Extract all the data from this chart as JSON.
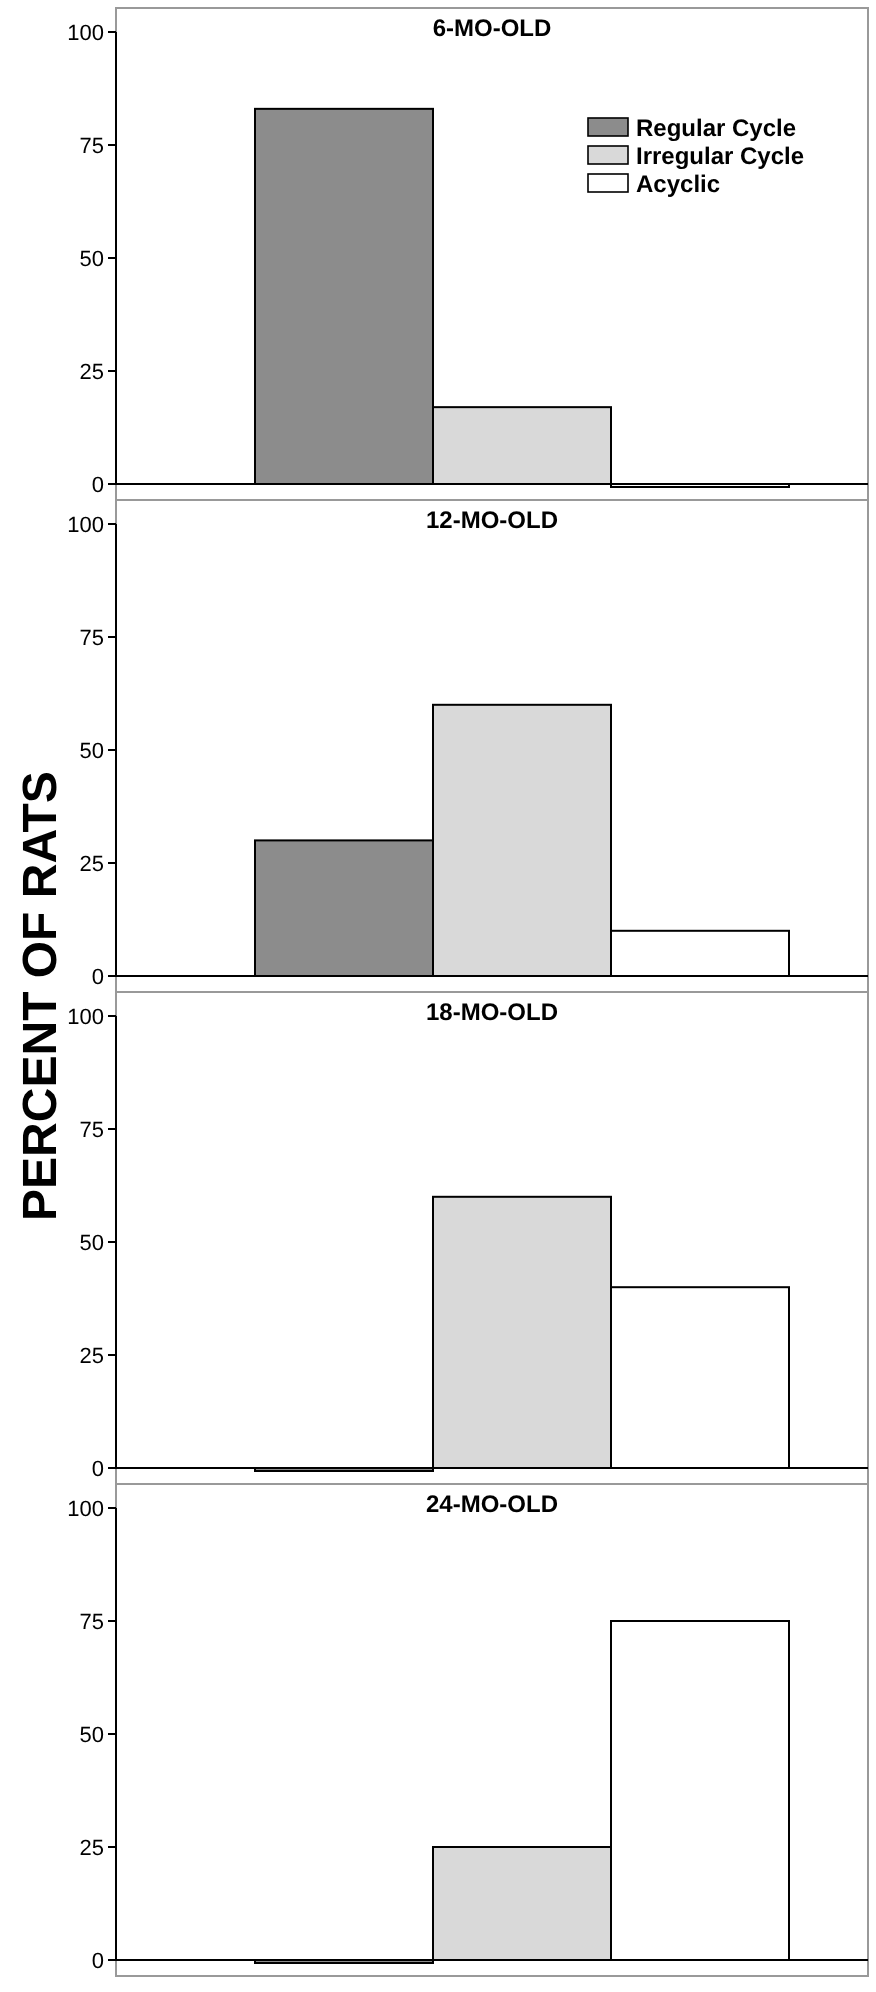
{
  "chart_data": [
    {
      "type": "bar",
      "title": "6-MO-OLD",
      "ylabel": "PERCENT OF RATS",
      "categories": [
        null
      ],
      "ylim": [
        0,
        100
      ],
      "yticks": [
        0,
        25,
        50,
        75,
        100
      ],
      "legend": "top right",
      "series": [
        {
          "name": "Regular Cycle",
          "color": "#8c8c8c",
          "values": [
            83
          ]
        },
        {
          "name": "Irregular Cycle",
          "color": "#d9d9d9",
          "values": [
            17
          ]
        },
        {
          "name": "Acyclic",
          "color": "#ffffff",
          "values": [
            0
          ]
        }
      ]
    },
    {
      "type": "bar",
      "title": "12-MO-OLD",
      "categories": [
        null
      ],
      "ylim": [
        0,
        100
      ],
      "yticks": [
        0,
        25,
        50,
        75,
        100
      ],
      "series": [
        {
          "color": "#8c8c8c",
          "values": [
            30
          ]
        },
        {
          "color": "#d9d9d9",
          "values": [
            60
          ]
        },
        {
          "color": "#ffffff",
          "values": [
            10
          ]
        }
      ]
    },
    {
      "type": "bar",
      "title": "18-MO-OLD",
      "categories": [
        null
      ],
      "ylim": [
        0,
        100
      ],
      "yticks": [
        0,
        25,
        50,
        75,
        100
      ],
      "series": [
        {
          "color": "#8c8c8c",
          "values": [
            0
          ]
        },
        {
          "color": "#d9d9d9",
          "values": [
            60
          ]
        },
        {
          "color": "#ffffff",
          "values": [
            40
          ]
        }
      ]
    },
    {
      "type": "bar",
      "title": "24-MO-OLD",
      "categories": [
        null
      ],
      "ylim": [
        0,
        100
      ],
      "yticks": [
        0,
        25,
        50,
        75,
        100
      ],
      "series": [
        {
          "color": "#8c8c8c",
          "values": [
            0
          ]
        },
        {
          "color": "#d9d9d9",
          "values": [
            25
          ]
        },
        {
          "color": "#ffffff",
          "values": [
            75
          ]
        }
      ]
    }
  ]
}
